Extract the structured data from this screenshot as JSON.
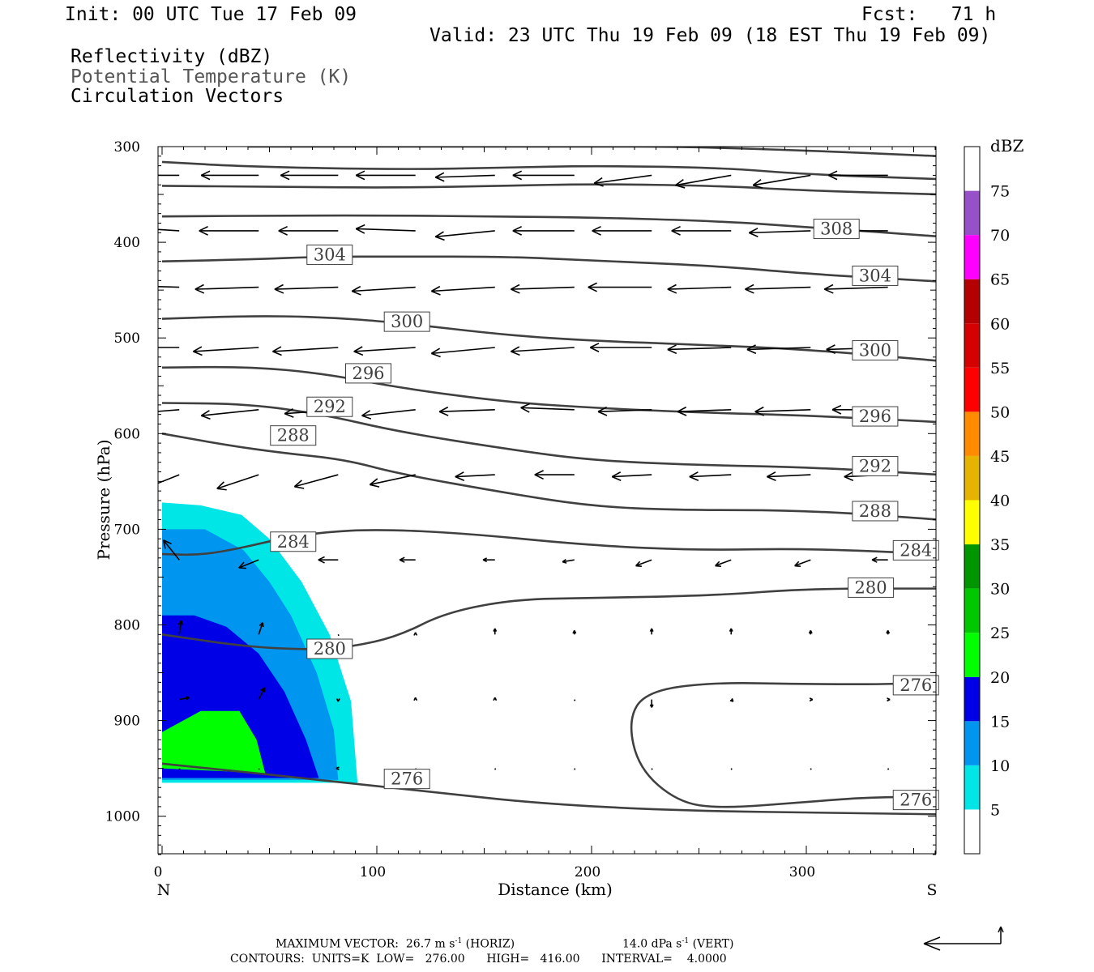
{
  "header": {
    "init": "Init: 00 UTC Tue 17 Feb 09",
    "fcst": "Fcst:   71 h",
    "valid": "Valid: 23 UTC Thu 19 Feb 09 (18 EST Thu 19 Feb 09)",
    "fields": [
      "Reflectivity (dBZ)",
      "Potential Temperature (K)",
      "Circulation Vectors"
    ]
  },
  "footer": {
    "max_vector_prefix": "MAXIMUM VECTOR:  26.7 m s",
    "horiz": " (HORIZ)",
    "vert_prefix": "14.0 dPa s",
    "vert": " (VERT)",
    "sup": "-1",
    "contours": "CONTOURS:  UNITS=K  LOW=   276.00      HIGH=   416.00      INTERVAL=    4.0000"
  },
  "chart_data": {
    "type": "cross-section",
    "xlabel": "Distance (km)",
    "ylabel": "Pressure (hPa)",
    "xlim": [
      0,
      362
    ],
    "ylim": [
      300,
      1040
    ],
    "x_ticks": [
      0,
      100,
      200,
      300
    ],
    "y_ticks": [
      300,
      400,
      500,
      600,
      700,
      800,
      900,
      1000
    ],
    "x_end_labels": {
      "left": "N",
      "right": "S"
    },
    "colorbar": {
      "unit": "dBZ",
      "levels": [
        5,
        10,
        15,
        20,
        25,
        30,
        35,
        40,
        45,
        50,
        55,
        60,
        65,
        70,
        75
      ],
      "colors": [
        "#ffffff",
        "#00e6e6",
        "#0096f0",
        "#0000e6",
        "#00ff00",
        "#00c800",
        "#009600",
        "#ffff00",
        "#e6b400",
        "#ff8c00",
        "#ff0000",
        "#d60000",
        "#b40000",
        "#ff00ff",
        "#9650c8",
        "#ffffff"
      ]
    },
    "reflectivity": [
      {
        "dbz": 5,
        "points": [
          [
            0,
            672
          ],
          [
            18,
            675
          ],
          [
            37,
            685
          ],
          [
            50,
            710
          ],
          [
            65,
            755
          ],
          [
            78,
            810
          ],
          [
            88,
            880
          ],
          [
            91,
            965
          ],
          [
            0,
            965
          ]
        ]
      },
      {
        "dbz": 10,
        "points": [
          [
            0,
            700
          ],
          [
            20,
            700
          ],
          [
            38,
            722
          ],
          [
            50,
            755
          ],
          [
            60,
            790
          ],
          [
            72,
            850
          ],
          [
            80,
            910
          ],
          [
            82,
            962
          ],
          [
            0,
            962
          ]
        ]
      },
      {
        "dbz": 15,
        "points": [
          [
            0,
            790
          ],
          [
            15,
            790
          ],
          [
            30,
            802
          ],
          [
            45,
            830
          ],
          [
            57,
            870
          ],
          [
            67,
            920
          ],
          [
            73,
            960
          ],
          [
            0,
            960
          ]
        ]
      },
      {
        "dbz": 20,
        "points": [
          [
            0,
            912
          ],
          [
            18,
            890
          ],
          [
            36,
            890
          ],
          [
            44,
            920
          ],
          [
            48,
            955
          ],
          [
            0,
            950
          ]
        ]
      }
    ],
    "theta_contours": [
      {
        "level": 276,
        "points": [
          [
            0,
            945
          ],
          [
            100,
            968
          ],
          [
            200,
            993
          ],
          [
            362,
            998
          ]
        ],
        "labels": [
          [
            108,
            961
          ]
        ]
      },
      {
        "level": 276,
        "points": [
          [
            362,
            980
          ],
          [
            330,
            980
          ],
          [
            300,
            985
          ],
          [
            260,
            992
          ],
          [
            240,
            985
          ],
          [
            222,
            950
          ],
          [
            217,
            900
          ],
          [
            225,
            870
          ],
          [
            255,
            860
          ],
          [
            300,
            862
          ],
          [
            345,
            862
          ],
          [
            362,
            858
          ]
        ],
        "labels": [
          [
            345,
            983
          ],
          [
            345,
            863
          ]
        ]
      },
      {
        "level": 280,
        "points": [
          [
            0,
            810
          ],
          [
            40,
            823
          ],
          [
            70,
            826
          ],
          [
            88,
            823
          ],
          [
            110,
            812
          ],
          [
            132,
            787
          ],
          [
            165,
            773
          ],
          [
            200,
            772
          ],
          [
            260,
            769
          ],
          [
            300,
            762
          ],
          [
            362,
            762
          ]
        ],
        "labels": [
          [
            72,
            825
          ],
          [
            324,
            761
          ]
        ]
      },
      {
        "level": 284,
        "points": [
          [
            0,
            726
          ],
          [
            18,
            727
          ],
          [
            36,
            720
          ],
          [
            55,
            710
          ],
          [
            75,
            703
          ],
          [
            100,
            700
          ],
          [
            140,
            704
          ],
          [
            200,
            717
          ],
          [
            250,
            722
          ],
          [
            300,
            720
          ],
          [
            362,
            726
          ]
        ],
        "labels": [
          [
            55,
            713
          ],
          [
            345,
            722
          ]
        ]
      },
      {
        "level": 288,
        "points": [
          [
            0,
            600
          ],
          [
            30,
            612
          ],
          [
            55,
            620
          ],
          [
            85,
            627
          ],
          [
            110,
            642
          ],
          [
            160,
            662
          ],
          [
            200,
            676
          ],
          [
            240,
            680
          ],
          [
            300,
            680
          ],
          [
            362,
            690
          ]
        ],
        "labels": [
          [
            55,
            602
          ],
          [
            326,
            681
          ]
        ]
      },
      {
        "level": 292,
        "points": [
          [
            0,
            568
          ],
          [
            40,
            569
          ],
          [
            75,
            580
          ],
          [
            110,
            598
          ],
          [
            160,
            616
          ],
          [
            200,
            628
          ],
          [
            250,
            633
          ],
          [
            300,
            635
          ],
          [
            362,
            643
          ]
        ],
        "labels": [
          [
            72,
            572
          ],
          [
            326,
            634
          ]
        ]
      },
      {
        "level": 296,
        "points": [
          [
            0,
            531
          ],
          [
            40,
            530
          ],
          [
            75,
            537
          ],
          [
            110,
            552
          ],
          [
            160,
            567
          ],
          [
            200,
            573
          ],
          [
            250,
            578
          ],
          [
            300,
            581
          ],
          [
            362,
            588
          ]
        ],
        "labels": [
          [
            90,
            537
          ],
          [
            326,
            582
          ]
        ]
      },
      {
        "level": 300,
        "points": [
          [
            0,
            480
          ],
          [
            40,
            477
          ],
          [
            75,
            478
          ],
          [
            110,
            484
          ],
          [
            160,
            497
          ],
          [
            200,
            503
          ],
          [
            250,
            507
          ],
          [
            300,
            512
          ],
          [
            362,
            524
          ]
        ],
        "labels": [
          [
            108,
            483
          ],
          [
            326,
            513
          ]
        ]
      },
      {
        "level": 304,
        "points": [
          [
            0,
            420
          ],
          [
            40,
            418
          ],
          [
            75,
            415
          ],
          [
            110,
            415
          ],
          [
            160,
            415
          ],
          [
            200,
            419
          ],
          [
            260,
            425
          ],
          [
            300,
            433
          ],
          [
            362,
            441
          ]
        ],
        "labels": [
          [
            72,
            413
          ],
          [
            326,
            435
          ]
        ]
      },
      {
        "level": 308,
        "points": [
          [
            0,
            373
          ],
          [
            60,
            372
          ],
          [
            110,
            372
          ],
          [
            150,
            373
          ],
          [
            200,
            374
          ],
          [
            260,
            378
          ],
          [
            300,
            384
          ],
          [
            362,
            394
          ]
        ],
        "labels": [
          [
            308,
            386
          ]
        ]
      },
      {
        "level": null,
        "points": [
          [
            0,
            341
          ],
          [
            50,
            342
          ],
          [
            110,
            343
          ],
          [
            160,
            341
          ],
          [
            200,
            339
          ],
          [
            260,
            341
          ],
          [
            300,
            346
          ],
          [
            362,
            350
          ]
        ],
        "labels": []
      },
      {
        "level": null,
        "points": [
          [
            0,
            316
          ],
          [
            40,
            321
          ],
          [
            110,
            324
          ],
          [
            160,
            322
          ],
          [
            200,
            320
          ],
          [
            260,
            322
          ],
          [
            300,
            329
          ],
          [
            362,
            334
          ]
        ],
        "labels": []
      },
      {
        "level": null,
        "points": [
          [
            40,
            300
          ],
          [
            100,
            300
          ],
          [
            150,
            300
          ],
          [
            200,
            300
          ],
          [
            240,
            300
          ],
          [
            300,
            304
          ],
          [
            362,
            310
          ]
        ],
        "labels": []
      }
    ],
    "vectors": [
      {
        "row": 330,
        "us": [
          -32,
          -29,
          -29,
          -30,
          -30,
          -31,
          -29,
          -28,
          -29,
          -30
        ],
        "ws": [
          0,
          0,
          0,
          0,
          -1,
          0,
          -4,
          -5,
          -5,
          0
        ]
      },
      {
        "row": 388,
        "us": [
          -33,
          -30,
          -30,
          -30,
          -30,
          -31,
          -30,
          -30,
          -31,
          -30
        ],
        "ws": [
          2,
          0,
          0,
          1,
          -3,
          0,
          0,
          0,
          -1,
          0
        ]
      },
      {
        "row": 447,
        "us": [
          -32,
          -32,
          -32,
          -32,
          -32,
          -32,
          -32,
          -32,
          -33,
          -32
        ],
        "ws": [
          1,
          -1,
          -1,
          -2,
          -2,
          -1,
          0,
          -1,
          -1,
          -1
        ]
      },
      {
        "row": 510,
        "us": [
          -34,
          -33,
          -33,
          -31,
          -32,
          -32,
          -31,
          -32,
          -32,
          -31
        ],
        "ws": [
          0,
          -2,
          -2,
          -2,
          -3,
          -2,
          0,
          -1,
          -1,
          -1
        ]
      },
      {
        "row": 575,
        "us": [
          -25,
          -29,
          -27,
          -27,
          -28,
          -27,
          -27,
          -27,
          -28,
          -28
        ],
        "ws": [
          -2,
          -3,
          -2,
          -3,
          -1,
          1,
          -1,
          -1,
          -1,
          0
        ]
      },
      {
        "row": 643,
        "us": [
          -20,
          -21,
          -22,
          -23,
          -20,
          -20,
          -20,
          -21,
          -22,
          -22
        ],
        "ws": [
          -8,
          -7,
          -6,
          -5,
          -1,
          0,
          -1,
          -1,
          -1,
          -1
        ]
      },
      {
        "row": 732,
        "us": [
          -8,
          -10,
          -10,
          -8,
          -6,
          -6,
          -8,
          -8,
          -8,
          -8
        ],
        "ws": [
          10,
          -4,
          0,
          0,
          0,
          -1,
          -3,
          -3,
          -3,
          0
        ]
      },
      {
        "row": 810,
        "us": [
          1,
          2,
          0,
          0,
          0,
          0,
          0,
          0,
          0,
          0
        ],
        "ws": [
          7,
          6,
          0,
          1,
          3,
          2,
          3,
          3,
          2,
          2
        ]
      },
      {
        "row": 878,
        "us": [
          5,
          3,
          0,
          0,
          0,
          0,
          0,
          1,
          1,
          1
        ],
        "ws": [
          1,
          6,
          -1,
          1,
          1,
          0,
          -4,
          -1,
          0,
          0
        ]
      },
      {
        "row": 950,
        "us": [
          0,
          0,
          -1,
          0,
          0,
          0,
          0,
          0,
          0,
          0
        ],
        "ws": [
          0,
          0,
          0,
          0,
          0,
          0,
          0,
          0,
          0,
          0
        ]
      }
    ],
    "vector_xs": [
      8,
      45,
      82,
      118,
      155,
      192,
      228,
      265,
      302,
      338
    ]
  }
}
